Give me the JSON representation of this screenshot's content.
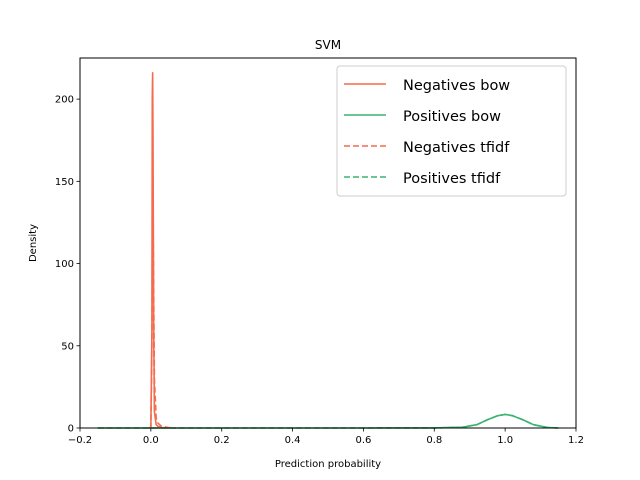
{
  "chart_data": {
    "type": "line",
    "title": "SVM",
    "xlabel": "Prediction probability",
    "ylabel": "Density",
    "xlim": [
      -0.2,
      1.2
    ],
    "ylim": [
      0,
      225
    ],
    "xticks": [
      -0.2,
      0.0,
      0.2,
      0.4,
      0.6,
      0.8,
      1.0,
      1.2
    ],
    "xtick_labels": [
      "−0.2",
      "0.0",
      "0.2",
      "0.4",
      "0.6",
      "0.8",
      "1.0",
      "1.2"
    ],
    "yticks": [
      0,
      50,
      100,
      150,
      200
    ],
    "ytick_labels": [
      "0",
      "50",
      "100",
      "150",
      "200"
    ],
    "grid": false,
    "legend_position": "top-right",
    "series": [
      {
        "name": "Negatives bow",
        "color": "#f46b4e",
        "dash": "solid",
        "x": [
          -0.005,
          0.0,
          0.003,
          0.004,
          0.005,
          0.006,
          0.008,
          0.01,
          0.015,
          0.02,
          0.03,
          0.05
        ],
        "y": [
          0,
          0.5,
          60,
          200,
          216,
          180,
          60,
          10,
          2,
          1,
          0.3,
          0
        ]
      },
      {
        "name": "Positives bow",
        "color": "#3cb371",
        "dash": "solid",
        "x": [
          -0.15,
          0.0,
          0.2,
          0.4,
          0.6,
          0.8,
          0.88,
          0.92,
          0.95,
          0.98,
          1.0,
          1.02,
          1.05,
          1.08,
          1.12,
          1.15
        ],
        "y": [
          0,
          0,
          0,
          0,
          0,
          0.05,
          0.5,
          2,
          5,
          7.5,
          8.3,
          7.5,
          5,
          2,
          0.3,
          0
        ]
      },
      {
        "name": "Negatives tfidf",
        "color": "#f46b4e",
        "dash": "dashed",
        "x": [
          -0.005,
          0.0,
          0.003,
          0.005,
          0.007,
          0.01,
          0.015,
          0.02,
          0.03,
          0.05,
          0.07
        ],
        "y": [
          0,
          0.5,
          50,
          160,
          110,
          30,
          6,
          3,
          1,
          0.3,
          0
        ]
      },
      {
        "name": "Positives tfidf",
        "color": "#3cb371",
        "dash": "dashed",
        "x": [
          -0.15,
          0.0,
          0.2,
          0.4,
          0.6,
          0.8,
          0.88,
          0.92,
          0.95,
          0.98,
          1.0,
          1.02,
          1.05,
          1.08,
          1.12,
          1.15
        ],
        "y": [
          0,
          0,
          0,
          0,
          0,
          0.05,
          0.5,
          2,
          5,
          7.6,
          8.2,
          7.6,
          5,
          2,
          0.3,
          0
        ]
      }
    ]
  }
}
